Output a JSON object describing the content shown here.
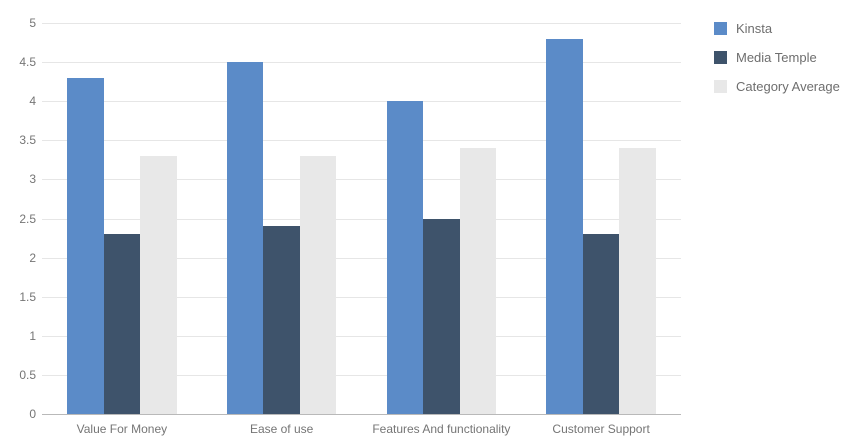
{
  "chart_data": {
    "type": "bar",
    "categories": [
      "Value For Money",
      "Ease of use",
      "Features And functionality",
      "Customer Support"
    ],
    "series": [
      {
        "name": "Kinsta",
        "color": "#5b8bc8",
        "values": [
          4.3,
          4.5,
          4.0,
          4.8
        ]
      },
      {
        "name": "Media Temple",
        "color": "#3e536b",
        "values": [
          2.3,
          2.4,
          2.5,
          2.3
        ]
      },
      {
        "name": "Category Average",
        "color": "#e8e8e8",
        "values": [
          3.3,
          3.3,
          3.4,
          3.4
        ]
      }
    ],
    "title": "",
    "xlabel": "",
    "ylabel": "",
    "ylim": [
      0,
      5
    ],
    "ytick_step": 0.5,
    "yticks": [
      "0",
      "0.5",
      "1",
      "1.5",
      "2",
      "2.5",
      "3",
      "3.5",
      "4",
      "4.5",
      "5"
    ],
    "grid": true,
    "legend_position": "right"
  },
  "colors": {
    "gridline": "#e6e6e6",
    "baseline": "#b9b9b9",
    "axis_text": "#757575",
    "legend_text": "#6e6e6e",
    "background": "#ffffff"
  }
}
